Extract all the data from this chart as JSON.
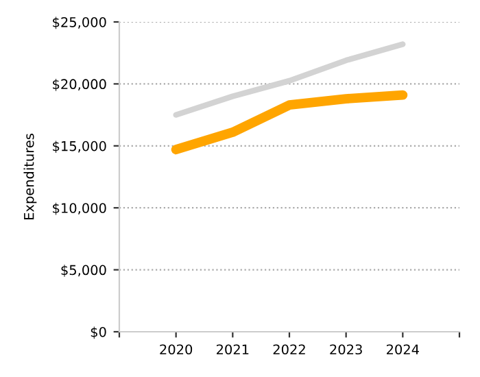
{
  "chart_data": {
    "type": "line",
    "ylabel": "Expenditures",
    "x": [
      2020,
      2021,
      2022,
      2023,
      2024
    ],
    "xlim": [
      2019,
      2025
    ],
    "xticks": [
      {
        "value": 2019,
        "label": null
      },
      2020,
      2021,
      2022,
      2023,
      2024,
      {
        "value": 2025,
        "label": null
      }
    ],
    "ylim": [
      0,
      25000
    ],
    "yticks": [
      {
        "value": 0,
        "label": "$0"
      },
      {
        "value": 5000,
        "label": "$5,000"
      },
      {
        "value": 10000,
        "label": "$10,000"
      },
      {
        "value": 15000,
        "label": "$15,000"
      },
      {
        "value": 20000,
        "label": "$20,000"
      },
      {
        "value": 25000,
        "label": "$25,000"
      }
    ],
    "grid": "y",
    "marker": "none",
    "line_style": "solid",
    "series": [
      {
        "color": "#d3d3d3",
        "values": [
          17500,
          19000,
          20250,
          21900,
          23200
        ]
      },
      {
        "color": "#ffa500",
        "values": [
          14700,
          16100,
          18300,
          18800,
          19100
        ]
      }
    ]
  }
}
